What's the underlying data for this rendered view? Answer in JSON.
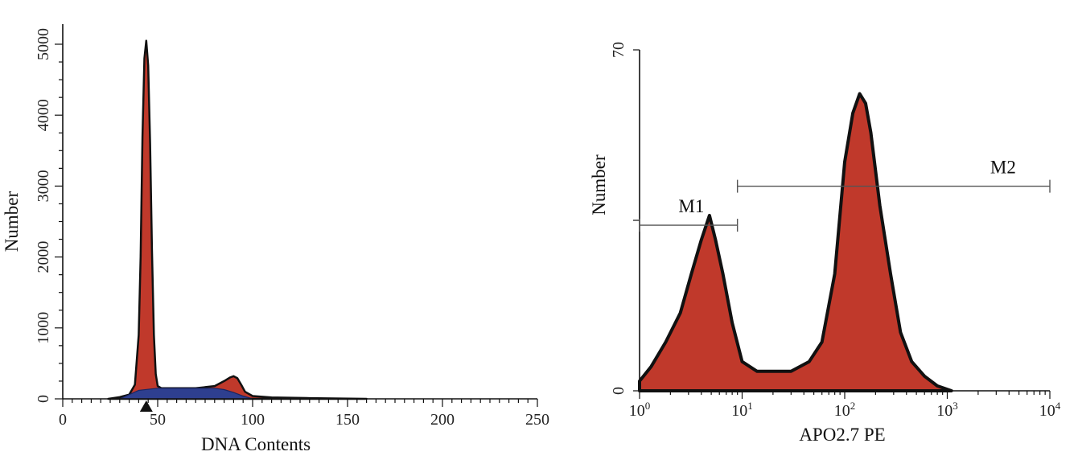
{
  "chart_data": [
    {
      "type": "area",
      "xlabel": "DNA Contents",
      "ylabel": "Number",
      "xlim": [
        0,
        250
      ],
      "ylim": [
        0,
        5000
      ],
      "x_ticks": [
        "0",
        "50",
        "100",
        "150",
        "200",
        "250"
      ],
      "y_ticks": [
        "0",
        "1000",
        "2000",
        "3000",
        "4000",
        "5000"
      ],
      "grid": false,
      "colors": {
        "fill": "#c0392b",
        "subpeak": "#2e3f8f",
        "outline": "#111111"
      },
      "series": [
        {
          "x": [
            24,
            30,
            35,
            38,
            40,
            41,
            42,
            43,
            44,
            45,
            46,
            47,
            48,
            49,
            50,
            52,
            55,
            60,
            70,
            80,
            85,
            88,
            90,
            92,
            94,
            96,
            100,
            110,
            130,
            160
          ],
          "values": [
            0,
            25,
            60,
            200,
            900,
            2000,
            3700,
            4800,
            5050,
            4700,
            3600,
            2100,
            900,
            350,
            180,
            150,
            150,
            150,
            150,
            180,
            250,
            300,
            320,
            290,
            200,
            100,
            40,
            20,
            10,
            0
          ]
        },
        {
          "x": [
            30,
            40,
            50,
            60,
            70,
            80,
            85,
            90,
            95,
            100
          ],
          "values": [
            0,
            120,
            150,
            150,
            150,
            150,
            130,
            90,
            40,
            0
          ]
        }
      ]
    },
    {
      "type": "area",
      "xlabel": "APO2.7 PE",
      "ylabel": "Number",
      "xscale": "log",
      "xlim": [
        1,
        10000
      ],
      "ylim": [
        0,
        70
      ],
      "x_ticks": [
        {
          "base": "10",
          "exp": "0"
        },
        {
          "base": "10",
          "exp": "1"
        },
        {
          "base": "10",
          "exp": "2"
        },
        {
          "base": "10",
          "exp": "3"
        },
        {
          "base": "10",
          "exp": "4"
        }
      ],
      "y_ticks": [
        "0",
        "70"
      ],
      "grid": false,
      "colors": {
        "fill": "#c0392b",
        "outline": "#111111"
      },
      "markers": [
        {
          "label": "M1",
          "range": [
            1,
            9
          ],
          "level": 34
        },
        {
          "label": "M2",
          "range": [
            9,
            10000
          ],
          "level": 42
        }
      ],
      "series": [
        {
          "x": [
            1,
            1.3,
            1.8,
            2.5,
            3.2,
            4,
            4.8,
            5.5,
            6.5,
            8,
            10,
            14,
            20,
            30,
            45,
            60,
            80,
            100,
            120,
            140,
            160,
            180,
            220,
            280,
            350,
            450,
            600,
            800,
            1100
          ],
          "values": [
            2,
            5,
            10,
            16,
            24,
            31,
            36,
            31,
            24,
            14,
            6,
            4,
            4,
            4,
            6,
            10,
            24,
            47,
            57,
            61,
            59,
            53,
            38,
            24,
            12,
            6,
            3,
            1,
            0
          ]
        }
      ]
    }
  ]
}
